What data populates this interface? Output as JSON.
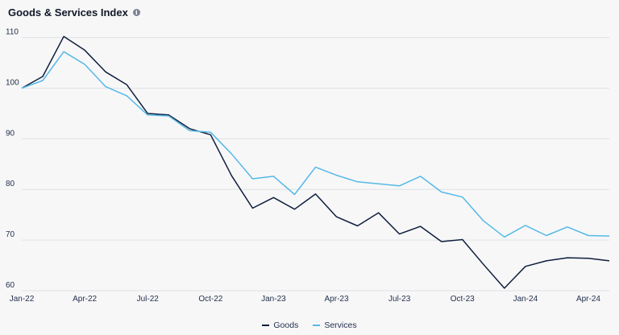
{
  "chart_data": {
    "type": "line",
    "title": "Goods & Services Index",
    "title_icon": "info-icon",
    "x": [
      "Jan-22",
      "Feb-22",
      "Mar-22",
      "Apr-22",
      "May-22",
      "Jun-22",
      "Jul-22",
      "Aug-22",
      "Sep-22",
      "Oct-22",
      "Nov-22",
      "Dec-22",
      "Jan-23",
      "Feb-23",
      "Mar-23",
      "Apr-23",
      "May-23",
      "Jun-23",
      "Jul-23",
      "Aug-23",
      "Sep-23",
      "Oct-23",
      "Nov-23",
      "Dec-23",
      "Jan-24",
      "Feb-24",
      "Mar-24",
      "Apr-24",
      "May-24"
    ],
    "x_tick_labels": [
      "Jan-22",
      "Apr-22",
      "Jul-22",
      "Oct-22",
      "Jan-23",
      "Apr-23",
      "Jul-23",
      "Oct-23",
      "Jan-24",
      "Apr-24"
    ],
    "y_ticks": [
      60,
      70,
      80,
      90,
      100,
      110
    ],
    "ylim": [
      60,
      112
    ],
    "grid": true,
    "legend_position": "bottom-center",
    "series": [
      {
        "name": "Goods",
        "color": "#0f1e3d",
        "values": [
          100.0,
          102.3,
          110.2,
          107.5,
          103.2,
          100.7,
          95.0,
          94.7,
          92.0,
          90.8,
          82.7,
          76.3,
          78.4,
          76.1,
          79.1,
          74.6,
          72.8,
          75.4,
          71.2,
          72.7,
          69.7,
          70.1,
          65.2,
          60.5,
          64.8,
          65.9,
          66.5,
          66.4,
          65.9
        ]
      },
      {
        "name": "Services",
        "color": "#55b9e6",
        "values": [
          100.0,
          101.5,
          107.2,
          104.7,
          100.3,
          98.5,
          94.7,
          94.5,
          91.6,
          91.3,
          87.0,
          82.1,
          82.6,
          79.0,
          84.4,
          82.8,
          81.5,
          81.1,
          80.7,
          82.6,
          79.5,
          78.5,
          73.8,
          70.6,
          72.9,
          70.9,
          72.6,
          70.9,
          70.8
        ]
      }
    ]
  }
}
